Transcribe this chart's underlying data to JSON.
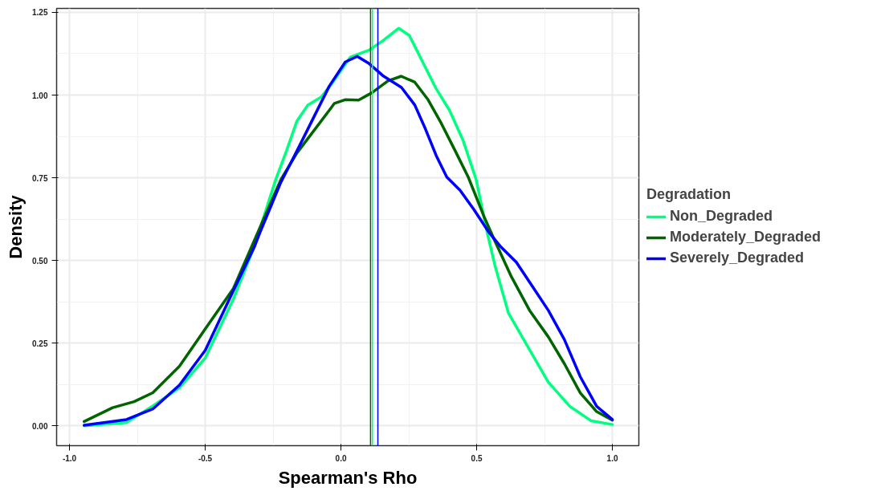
{
  "chart_data": {
    "type": "line",
    "xlabel": "Spearman's Rho",
    "ylabel": "Density",
    "legend_title": "Degradation",
    "legend": "right",
    "grid": true,
    "line_style": "solid",
    "marker": "none",
    "xlim": [
      -1.0475,
      1.0975
    ],
    "ylim": [
      -0.06,
      1.262
    ],
    "xticks": [
      {
        "value": -1.0,
        "label": "-1.0"
      },
      {
        "value": -0.5,
        "label": "-0.5"
      },
      {
        "value": 0,
        "label": "0.0"
      },
      {
        "value": 0.5,
        "label": "0.5"
      },
      {
        "value": 1.0,
        "label": "1.0"
      }
    ],
    "yticks": [
      {
        "value": 0,
        "label": "0.00"
      },
      {
        "value": 0.25,
        "label": "0.25"
      },
      {
        "value": 0.5,
        "label": "0.50"
      },
      {
        "value": 0.75,
        "label": "0.75"
      },
      {
        "value": 1.0,
        "label": "1.00"
      },
      {
        "value": 1.25,
        "label": "1.25"
      }
    ],
    "series": [
      {
        "name": "Non_Degraded",
        "color": "#00ff80",
        "x": [
          -0.946,
          -0.79,
          -0.693,
          -0.595,
          -0.5,
          -0.398,
          -0.319,
          -0.24,
          -0.2,
          -0.162,
          -0.122,
          -0.073,
          -0.033,
          0.035,
          0.104,
          0.154,
          0.213,
          0.252,
          0.301,
          0.351,
          0.4,
          0.449,
          0.498,
          0.538,
          0.567,
          0.617,
          0.685,
          0.764,
          0.843,
          0.922,
          1.0
        ],
        "values": [
          0.0,
          0.01,
          0.06,
          0.115,
          0.205,
          0.38,
          0.543,
          0.745,
          0.833,
          0.922,
          0.97,
          0.994,
          1.035,
          1.115,
          1.136,
          1.164,
          1.202,
          1.18,
          1.1,
          1.019,
          0.954,
          0.865,
          0.745,
          0.587,
          0.486,
          0.341,
          0.244,
          0.132,
          0.059,
          0.015,
          0.004
        ]
      },
      {
        "name": "Moderately_Degraded",
        "color": "#006400",
        "x": [
          -0.946,
          -0.841,
          -0.762,
          -0.693,
          -0.595,
          -0.5,
          -0.397,
          -0.221,
          -0.162,
          -0.102,
          -0.043,
          -0.024,
          0.015,
          0.065,
          0.114,
          0.173,
          0.222,
          0.272,
          0.321,
          0.37,
          0.42,
          0.469,
          0.528,
          0.567,
          0.626,
          0.695,
          0.764,
          0.823,
          0.882,
          0.942,
          1.0
        ],
        "values": [
          0.013,
          0.055,
          0.073,
          0.1,
          0.18,
          0.293,
          0.414,
          0.745,
          0.825,
          0.89,
          0.954,
          0.975,
          0.986,
          0.985,
          1.007,
          1.043,
          1.057,
          1.039,
          0.986,
          0.914,
          0.833,
          0.752,
          0.631,
          0.559,
          0.454,
          0.349,
          0.269,
          0.188,
          0.099,
          0.043,
          0.017
        ]
      },
      {
        "name": "Severely_Degraded",
        "color": "#0000ff",
        "x": [
          -0.946,
          -0.79,
          -0.693,
          -0.595,
          -0.5,
          -0.398,
          -0.318,
          -0.299,
          -0.221,
          -0.161,
          -0.102,
          -0.043,
          0.016,
          0.06,
          0.104,
          0.154,
          0.223,
          0.272,
          0.311,
          0.351,
          0.39,
          0.439,
          0.488,
          0.547,
          0.587,
          0.646,
          0.705,
          0.764,
          0.823,
          0.882,
          0.942,
          1.0
        ],
        "values": [
          0.002,
          0.019,
          0.051,
          0.123,
          0.228,
          0.406,
          0.543,
          0.583,
          0.737,
          0.833,
          0.93,
          1.027,
          1.1,
          1.117,
          1.095,
          1.059,
          1.023,
          0.97,
          0.898,
          0.817,
          0.752,
          0.712,
          0.656,
          0.583,
          0.543,
          0.495,
          0.422,
          0.349,
          0.261,
          0.148,
          0.059,
          0.019
        ]
      }
    ],
    "ref_lines": [
      {
        "axis": "x",
        "value": 0.109,
        "color": "#006400"
      },
      {
        "axis": "x",
        "value": 0.116,
        "color": "#00ff80"
      },
      {
        "axis": "x",
        "value": 0.136,
        "color": "#0000ff"
      }
    ]
  }
}
